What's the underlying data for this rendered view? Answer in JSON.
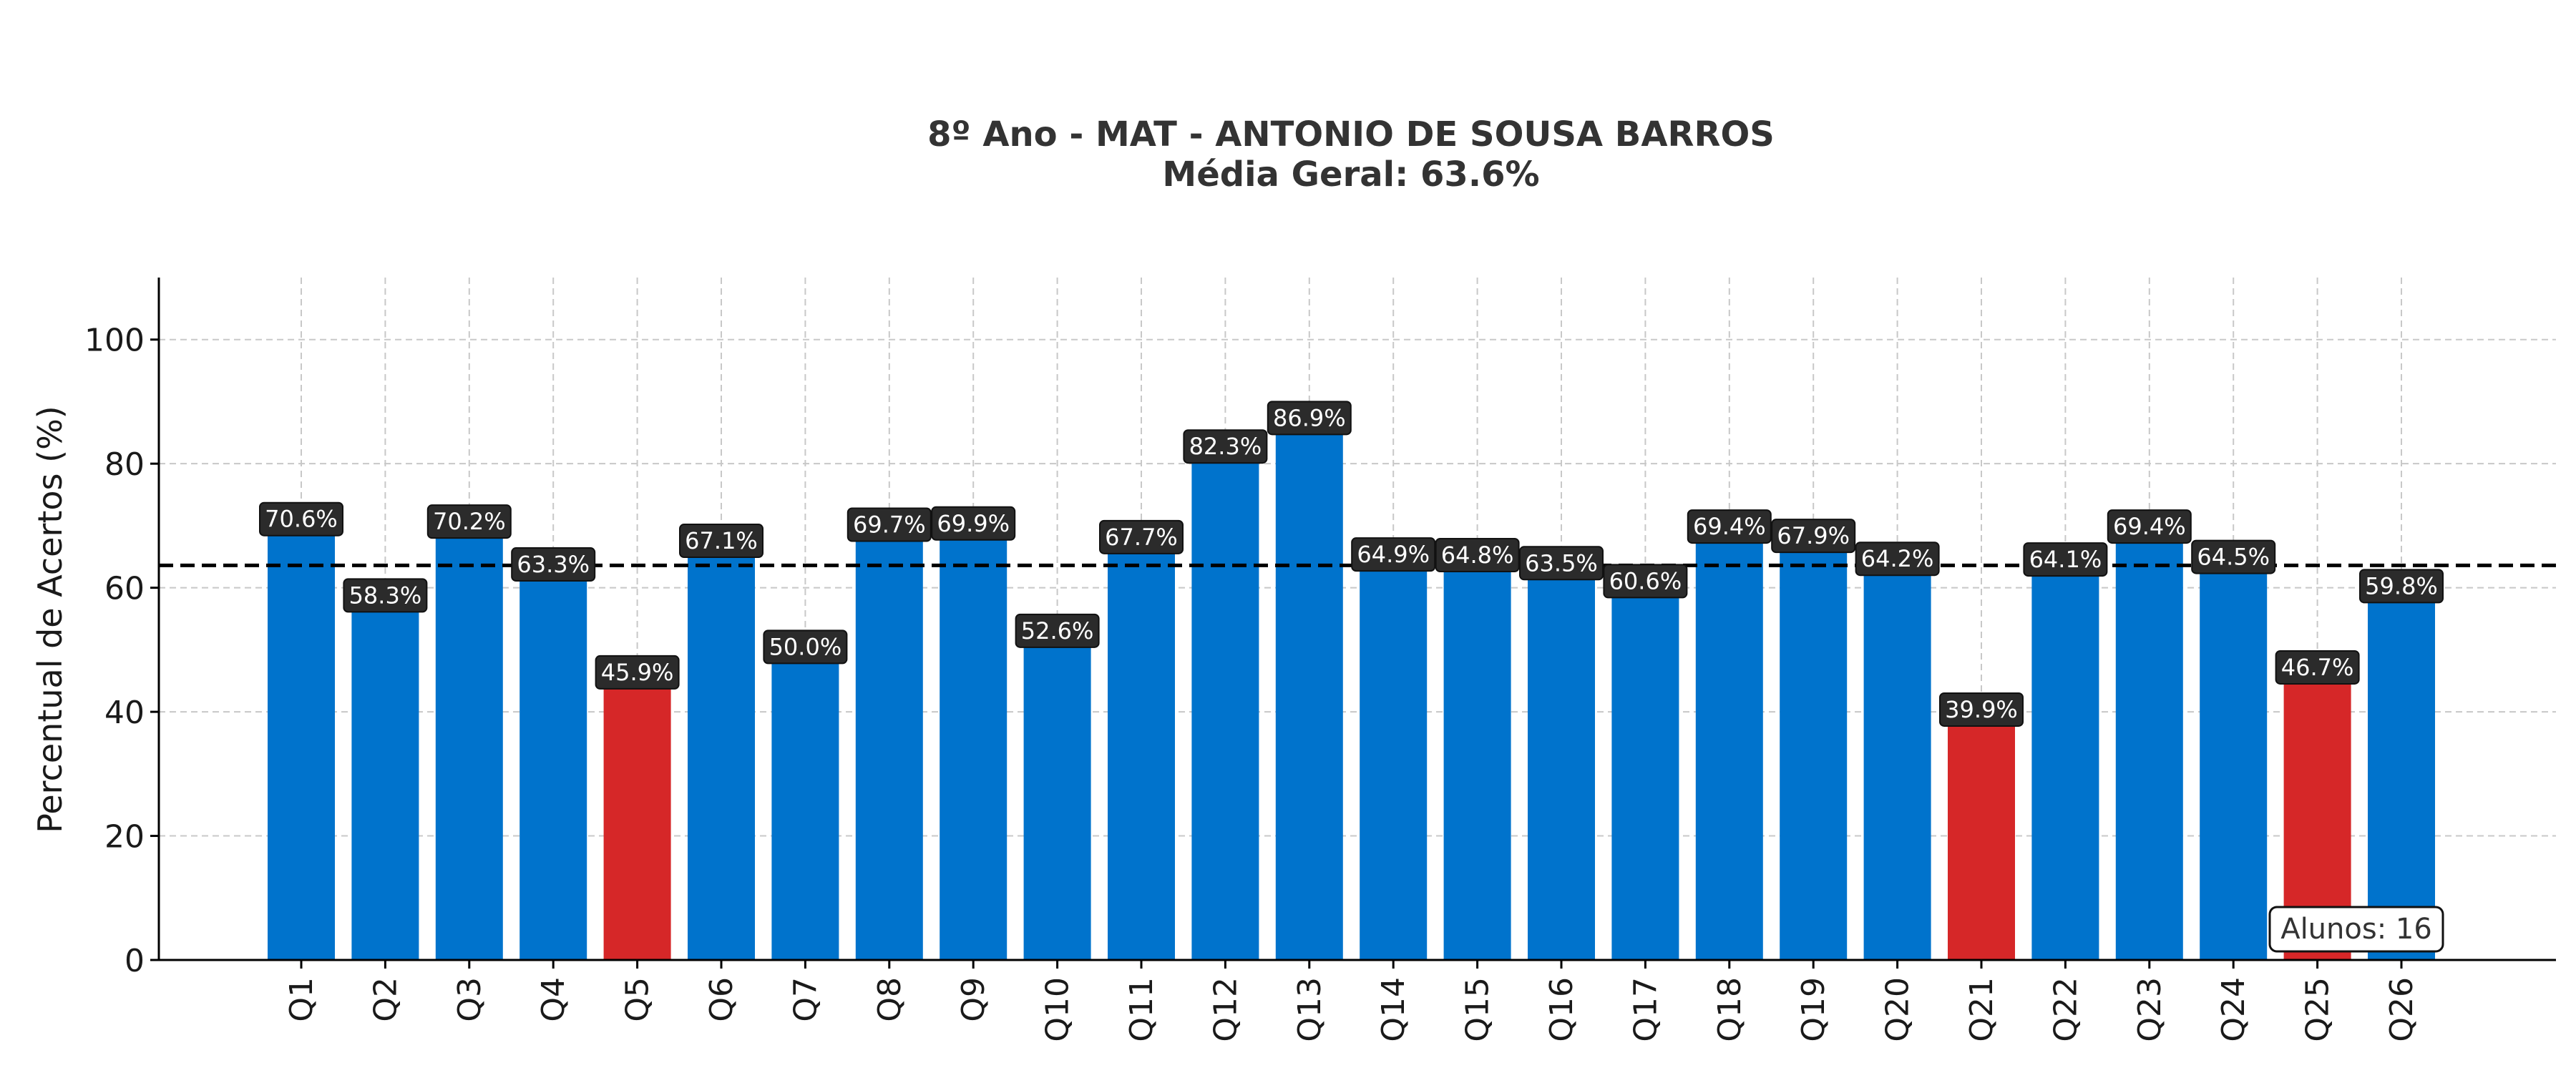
{
  "chart_data": {
    "type": "bar",
    "title": "8º Ano - MAT - ANTONIO DE SOUSA BARROS",
    "subtitle": "Média Geral: 63.6%",
    "xlabel": "",
    "ylabel": "Percentual de Acertos (%)",
    "ylim": [
      0,
      110
    ],
    "yticks": [
      0,
      20,
      40,
      60,
      80,
      100
    ],
    "grid": true,
    "mean_line": 63.6,
    "categories": [
      "Q1",
      "Q2",
      "Q3",
      "Q4",
      "Q5",
      "Q6",
      "Q7",
      "Q8",
      "Q9",
      "Q10",
      "Q11",
      "Q12",
      "Q13",
      "Q14",
      "Q15",
      "Q16",
      "Q17",
      "Q18",
      "Q19",
      "Q20",
      "Q21",
      "Q22",
      "Q23",
      "Q24",
      "Q25",
      "Q26"
    ],
    "values": [
      70.6,
      58.3,
      70.2,
      63.3,
      45.9,
      67.1,
      50.0,
      69.7,
      69.9,
      52.6,
      67.7,
      82.3,
      86.9,
      64.9,
      64.8,
      63.5,
      60.6,
      69.4,
      67.9,
      64.2,
      39.9,
      64.1,
      69.4,
      64.5,
      46.7,
      59.8
    ],
    "labels": [
      "70.6%",
      "58.3%",
      "70.2%",
      "63.3%",
      "45.9%",
      "67.1%",
      "50.0%",
      "69.7%",
      "69.9%",
      "52.6%",
      "67.7%",
      "82.3%",
      "86.9%",
      "64.9%",
      "64.8%",
      "63.5%",
      "60.6%",
      "69.4%",
      "67.9%",
      "64.2%",
      "39.9%",
      "64.1%",
      "69.4%",
      "64.5%",
      "46.7%",
      "59.8%"
    ],
    "colors": {
      "normal": "#0073cc",
      "low": "#d62728",
      "label_bg": "#2b2b2b",
      "mean_line": "#000000",
      "grid": "#c8c8c8"
    },
    "low_threshold": 50,
    "annotation": "Alunos: 16"
  }
}
